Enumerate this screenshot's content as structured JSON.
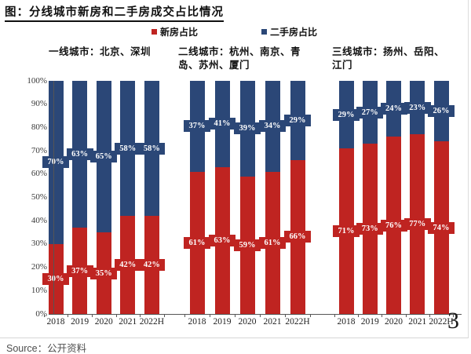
{
  "footer": {
    "source": "Source：公开资料",
    "page_number": "3"
  },
  "chart_data": {
    "type": "bar",
    "stacked": true,
    "title": "图：分线城市新房和二手房成交占比情况",
    "ylim": [
      0,
      100
    ],
    "grid": false,
    "legend_position": "top-center",
    "y_ticks": [
      "100%",
      "90%",
      "80%",
      "70%",
      "60%",
      "50%",
      "40%",
      "30%",
      "20%",
      "10%",
      "0%"
    ],
    "legend": [
      {
        "label": "新房占比",
        "color": "#bf2421"
      },
      {
        "label": "二手房占比",
        "color": "#2b4777"
      }
    ],
    "series_names": [
      "新房占比",
      "二手房占比"
    ],
    "groups": [
      {
        "label": "一线城市：北京、深圳",
        "categories": [
          "2018",
          "2019",
          "2020",
          "2021",
          "2022H"
        ],
        "series": [
          {
            "name": "新房占比",
            "values": [
              30,
              37,
              35,
              42,
              42
            ]
          },
          {
            "name": "二手房占比",
            "values": [
              70,
              63,
              65,
              58,
              58
            ]
          }
        ]
      },
      {
        "label": "二线城市：杭州、南京、青岛、苏州、厦门",
        "categories": [
          "2018",
          "2019",
          "2020",
          "2021",
          "2022H"
        ],
        "series": [
          {
            "name": "新房占比",
            "values": [
              61,
              63,
              59,
              61,
              66
            ]
          },
          {
            "name": "二手房占比",
            "values": [
              37,
              41,
              39,
              34,
              29
            ]
          }
        ]
      },
      {
        "label": "三线城市：扬州、岳阳、江门",
        "categories": [
          "2018",
          "2019",
          "2020",
          "2021",
          "2022H"
        ],
        "series": [
          {
            "name": "新房占比",
            "values": [
              71,
              73,
              76,
              77,
              74
            ]
          },
          {
            "name": "二手房占比",
            "values": [
              29,
              27,
              24,
              23,
              26
            ]
          }
        ]
      }
    ]
  }
}
